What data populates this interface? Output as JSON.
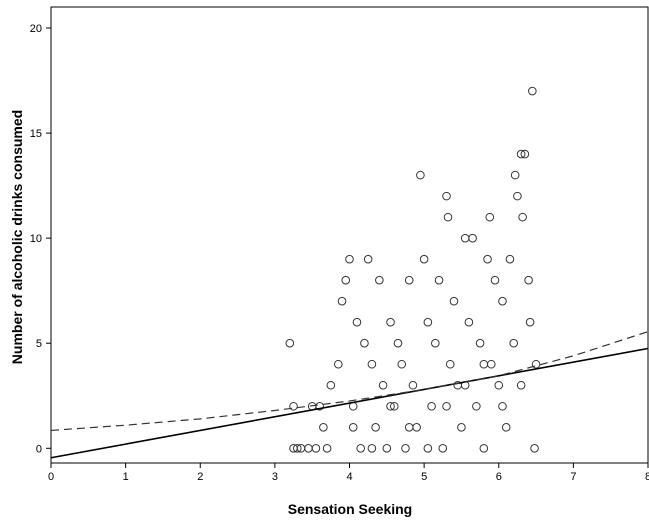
{
  "chart_data": {
    "type": "scatter",
    "title": "",
    "xlabel": "Sensation Seeking",
    "ylabel": "Number of alcoholic drinks consumed",
    "xlim": [
      0,
      8
    ],
    "ylim": [
      -0.7,
      21
    ],
    "x_ticks": [
      "0",
      "1",
      "2",
      "3",
      "4",
      "5",
      "6",
      "7",
      "8"
    ],
    "y_ticks": [
      "0",
      "5",
      "10",
      "15",
      "20"
    ],
    "grid": false,
    "legend": "none",
    "marker_color": "#333333",
    "series": [
      {
        "kind": "points",
        "points": [
          [
            3.2,
            5
          ],
          [
            3.25,
            2
          ],
          [
            3.25,
            0
          ],
          [
            3.3,
            0
          ],
          [
            3.35,
            0
          ],
          [
            3.45,
            0
          ],
          [
            3.5,
            2
          ],
          [
            3.55,
            0
          ],
          [
            3.6,
            2
          ],
          [
            3.65,
            1
          ],
          [
            3.7,
            0
          ],
          [
            3.75,
            3
          ],
          [
            3.85,
            4
          ],
          [
            3.9,
            7
          ],
          [
            3.95,
            8
          ],
          [
            4.0,
            9
          ],
          [
            4.05,
            2
          ],
          [
            4.1,
            6
          ],
          [
            4.15,
            0
          ],
          [
            4.2,
            5
          ],
          [
            4.25,
            9
          ],
          [
            4.3,
            4
          ],
          [
            4.35,
            1
          ],
          [
            4.4,
            8
          ],
          [
            4.45,
            3
          ],
          [
            4.5,
            0
          ],
          [
            4.55,
            6
          ],
          [
            4.6,
            2
          ],
          [
            4.65,
            5
          ],
          [
            4.7,
            4
          ],
          [
            4.75,
            0
          ],
          [
            4.8,
            8
          ],
          [
            4.85,
            3
          ],
          [
            4.9,
            1
          ],
          [
            4.95,
            13
          ],
          [
            5.0,
            9
          ],
          [
            5.05,
            6
          ],
          [
            5.1,
            2
          ],
          [
            5.15,
            5
          ],
          [
            5.2,
            8
          ],
          [
            5.25,
            0
          ],
          [
            5.3,
            12
          ],
          [
            5.32,
            11
          ],
          [
            5.35,
            4
          ],
          [
            5.4,
            7
          ],
          [
            5.45,
            3
          ],
          [
            5.5,
            1
          ],
          [
            5.55,
            10
          ],
          [
            5.6,
            6
          ],
          [
            5.65,
            10
          ],
          [
            5.7,
            2
          ],
          [
            5.75,
            5
          ],
          [
            5.8,
            0
          ],
          [
            5.85,
            9
          ],
          [
            5.88,
            11
          ],
          [
            5.9,
            4
          ],
          [
            5.95,
            8
          ],
          [
            6.0,
            3
          ],
          [
            6.05,
            7
          ],
          [
            6.1,
            1
          ],
          [
            6.15,
            9
          ],
          [
            6.2,
            5
          ],
          [
            6.22,
            13
          ],
          [
            6.25,
            12
          ],
          [
            6.3,
            14
          ],
          [
            6.32,
            11
          ],
          [
            6.35,
            14
          ],
          [
            6.4,
            8
          ],
          [
            6.42,
            6
          ],
          [
            6.45,
            17
          ],
          [
            6.48,
            0
          ],
          [
            6.5,
            4
          ],
          [
            4.05,
            1
          ],
          [
            4.55,
            2
          ],
          [
            5.05,
            0
          ],
          [
            5.55,
            3
          ],
          [
            6.05,
            2
          ],
          [
            4.3,
            0
          ],
          [
            4.8,
            1
          ],
          [
            5.3,
            2
          ],
          [
            5.8,
            4
          ],
          [
            6.3,
            3
          ]
        ]
      },
      {
        "kind": "linear-fit",
        "intercept": -0.45,
        "slope": 0.65,
        "dashed": false
      },
      {
        "kind": "curve-fit",
        "x": [
          0,
          1,
          2,
          3,
          4,
          5,
          6,
          7,
          8
        ],
        "y": [
          0.85,
          1.1,
          1.4,
          1.8,
          2.25,
          2.8,
          3.45,
          4.4,
          5.55
        ],
        "dashed": true
      }
    ]
  }
}
